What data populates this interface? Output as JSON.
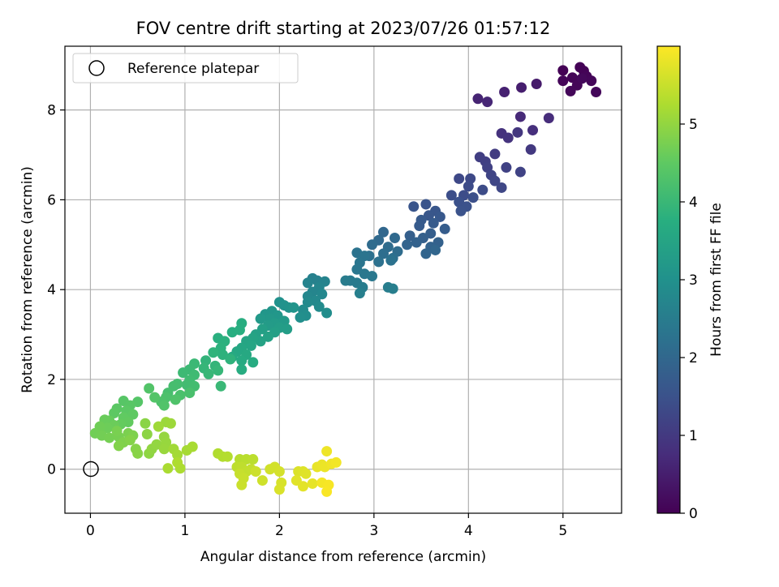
{
  "chart_data": {
    "type": "scatter",
    "title": "FOV centre drift starting at 2023/07/26 01:57:12",
    "xlabel": "Angular distance from reference (arcmin)",
    "ylabel": "Rotation from reference (arcmin)",
    "xlim": [
      -0.27,
      5.62
    ],
    "ylim": [
      -0.98,
      9.42
    ],
    "xticks": [
      0,
      1,
      2,
      3,
      4,
      5
    ],
    "yticks": [
      0,
      2,
      4,
      6,
      8
    ],
    "grid": true,
    "legend_position": "top-left",
    "reference": {
      "label": "Reference platepar",
      "x": 0,
      "y": 0
    },
    "colorbar": {
      "label": "Hours from first FF file",
      "colormap": "viridis",
      "range": [
        0,
        6.0
      ],
      "ticks": [
        0,
        1,
        2,
        3,
        4,
        5
      ]
    },
    "series": [
      {
        "colored_by": "hours",
        "points": [
          [
            5.0,
            8.88,
            0.02
          ],
          [
            5.18,
            8.95,
            0.03
          ],
          [
            5.22,
            8.87,
            0.04
          ],
          [
            5.1,
            8.72,
            0.05
          ],
          [
            5.25,
            8.75,
            0.06
          ],
          [
            5.0,
            8.65,
            0.07
          ],
          [
            5.15,
            8.55,
            0.08
          ],
          [
            5.3,
            8.65,
            0.09
          ],
          [
            5.08,
            8.42,
            0.1
          ],
          [
            5.35,
            8.4,
            0.11
          ],
          [
            5.2,
            8.7,
            0.12
          ],
          [
            4.72,
            8.58,
            0.45
          ],
          [
            4.56,
            8.5,
            0.5
          ],
          [
            4.38,
            8.4,
            0.55
          ],
          [
            4.1,
            8.25,
            0.6
          ],
          [
            4.2,
            8.18,
            0.65
          ],
          [
            4.55,
            7.85,
            0.7
          ],
          [
            4.85,
            7.82,
            0.75
          ],
          [
            4.68,
            7.55,
            0.8
          ],
          [
            4.35,
            7.48,
            0.85
          ],
          [
            4.42,
            7.38,
            0.9
          ],
          [
            4.52,
            7.5,
            0.95
          ],
          [
            4.66,
            7.12,
            1.0
          ],
          [
            4.28,
            7.02,
            1.05
          ],
          [
            4.12,
            6.95,
            1.1
          ],
          [
            4.18,
            6.85,
            1.12
          ],
          [
            4.2,
            6.72,
            1.15
          ],
          [
            4.4,
            6.72,
            1.18
          ],
          [
            4.55,
            6.62,
            1.2
          ],
          [
            4.24,
            6.55,
            1.22
          ],
          [
            4.28,
            6.42,
            1.25
          ],
          [
            4.35,
            6.27,
            1.28
          ],
          [
            3.9,
            6.47,
            1.3
          ],
          [
            4.02,
            6.47,
            1.32
          ],
          [
            4.0,
            6.3,
            1.35
          ],
          [
            4.15,
            6.22,
            1.38
          ],
          [
            3.95,
            6.1,
            1.4
          ],
          [
            3.82,
            6.1,
            1.42
          ],
          [
            4.05,
            6.05,
            1.45
          ],
          [
            3.9,
            5.95,
            1.48
          ],
          [
            3.98,
            5.85,
            1.5
          ],
          [
            3.92,
            5.75,
            1.52
          ],
          [
            3.55,
            5.9,
            1.55
          ],
          [
            3.42,
            5.85,
            1.58
          ],
          [
            3.65,
            5.75,
            1.6
          ],
          [
            3.58,
            5.65,
            1.62
          ],
          [
            3.7,
            5.62,
            1.65
          ],
          [
            3.5,
            5.55,
            1.68
          ],
          [
            3.63,
            5.48,
            1.7
          ],
          [
            3.48,
            5.42,
            1.72
          ],
          [
            3.75,
            5.35,
            1.75
          ],
          [
            3.6,
            5.25,
            1.78
          ],
          [
            3.38,
            5.2,
            1.8
          ],
          [
            3.52,
            5.15,
            1.82
          ],
          [
            3.68,
            5.05,
            1.85
          ],
          [
            3.45,
            5.05,
            1.88
          ],
          [
            3.6,
            4.95,
            1.9
          ],
          [
            3.35,
            5.0,
            1.92
          ],
          [
            3.55,
            4.8,
            1.95
          ],
          [
            3.65,
            4.88,
            1.97
          ],
          [
            3.1,
            5.28,
            2.0
          ],
          [
            3.22,
            5.15,
            2.03
          ],
          [
            3.05,
            5.1,
            2.05
          ],
          [
            2.98,
            5.0,
            2.08
          ],
          [
            3.15,
            4.95,
            2.1
          ],
          [
            3.25,
            4.85,
            2.12
          ],
          [
            3.1,
            4.8,
            2.15
          ],
          [
            3.2,
            4.7,
            2.18
          ],
          [
            2.95,
            4.75,
            2.2
          ],
          [
            3.05,
            4.62,
            2.22
          ],
          [
            3.18,
            4.65,
            2.25
          ],
          [
            2.82,
            4.82,
            2.28
          ],
          [
            2.9,
            4.75,
            2.3
          ],
          [
            2.85,
            4.6,
            2.32
          ],
          [
            2.82,
            4.45,
            2.35
          ],
          [
            2.9,
            4.35,
            2.38
          ],
          [
            2.98,
            4.3,
            2.4
          ],
          [
            2.75,
            4.2,
            2.42
          ],
          [
            2.82,
            4.15,
            2.45
          ],
          [
            2.7,
            4.2,
            2.48
          ],
          [
            2.88,
            4.05,
            2.5
          ],
          [
            3.15,
            4.05,
            2.52
          ],
          [
            3.2,
            4.02,
            2.55
          ],
          [
            2.85,
            3.92,
            2.57
          ],
          [
            2.35,
            4.25,
            2.6
          ],
          [
            2.4,
            4.2,
            2.62
          ],
          [
            2.3,
            4.15,
            2.65
          ],
          [
            2.48,
            4.18,
            2.67
          ],
          [
            2.42,
            4.05,
            2.7
          ],
          [
            2.35,
            3.95,
            2.72
          ],
          [
            2.3,
            3.85,
            2.75
          ],
          [
            2.45,
            3.9,
            2.77
          ],
          [
            2.38,
            3.75,
            2.8
          ],
          [
            2.3,
            3.72,
            2.82
          ],
          [
            2.42,
            3.62,
            2.85
          ],
          [
            2.25,
            3.55,
            2.87
          ],
          [
            2.5,
            3.48,
            2.9
          ],
          [
            2.28,
            3.42,
            2.92
          ],
          [
            2.22,
            3.38,
            2.95
          ],
          [
            2.0,
            3.72,
            3.0
          ],
          [
            2.05,
            3.65,
            3.02
          ],
          [
            2.1,
            3.6,
            3.05
          ],
          [
            2.15,
            3.6,
            3.07
          ],
          [
            1.92,
            3.52,
            3.1
          ],
          [
            1.85,
            3.45,
            3.12
          ],
          [
            1.98,
            3.42,
            3.15
          ],
          [
            1.9,
            3.35,
            3.17
          ],
          [
            1.8,
            3.35,
            3.2
          ],
          [
            2.05,
            3.3,
            3.22
          ],
          [
            1.95,
            3.25,
            3.25
          ],
          [
            1.88,
            3.2,
            3.27
          ],
          [
            2.0,
            3.15,
            3.3
          ],
          [
            2.08,
            3.12,
            3.32
          ],
          [
            1.82,
            3.12,
            3.35
          ],
          [
            1.95,
            3.05,
            3.37
          ],
          [
            1.75,
            3.0,
            3.4
          ],
          [
            1.88,
            2.95,
            3.42
          ],
          [
            1.8,
            2.85,
            3.45
          ],
          [
            1.72,
            2.92,
            3.47
          ],
          [
            1.65,
            2.85,
            3.5
          ],
          [
            1.7,
            2.75,
            3.52
          ],
          [
            1.6,
            2.7,
            3.55
          ],
          [
            1.55,
            2.62,
            3.57
          ],
          [
            1.65,
            2.55,
            3.6
          ],
          [
            1.5,
            2.5,
            3.62
          ],
          [
            1.6,
            2.42,
            3.65
          ],
          [
            1.72,
            2.38,
            3.67
          ],
          [
            1.6,
            2.22,
            3.7
          ],
          [
            1.6,
            3.25,
            3.72
          ],
          [
            1.5,
            3.05,
            3.74
          ],
          [
            1.58,
            3.1,
            3.76
          ],
          [
            1.35,
            2.92,
            3.78
          ],
          [
            1.42,
            2.85,
            3.8
          ],
          [
            1.38,
            2.7,
            3.82
          ],
          [
            1.4,
            2.55,
            3.84
          ],
          [
            1.48,
            2.45,
            3.86
          ],
          [
            1.3,
            2.6,
            3.88
          ],
          [
            1.22,
            2.42,
            3.9
          ],
          [
            1.32,
            2.3,
            3.92
          ],
          [
            1.2,
            2.25,
            3.94
          ],
          [
            1.35,
            2.2,
            3.96
          ],
          [
            1.25,
            2.12,
            3.98
          ],
          [
            1.38,
            1.85,
            4.0
          ],
          [
            1.1,
            2.35,
            4.02
          ],
          [
            1.05,
            2.22,
            4.04
          ],
          [
            0.98,
            2.15,
            4.06
          ],
          [
            1.1,
            2.1,
            4.08
          ],
          [
            1.05,
            1.98,
            4.1
          ],
          [
            1.02,
            1.88,
            4.12
          ],
          [
            1.1,
            1.85,
            4.14
          ],
          [
            0.92,
            1.9,
            4.16
          ],
          [
            0.88,
            1.85,
            4.18
          ],
          [
            0.82,
            1.7,
            4.2
          ],
          [
            1.05,
            1.7,
            4.22
          ],
          [
            0.95,
            1.65,
            4.24
          ],
          [
            0.8,
            1.6,
            4.26
          ],
          [
            0.75,
            1.5,
            4.28
          ],
          [
            0.9,
            1.55,
            4.3
          ],
          [
            0.78,
            1.42,
            4.32
          ],
          [
            0.62,
            1.8,
            4.34
          ],
          [
            0.68,
            1.6,
            4.36
          ],
          [
            0.5,
            1.5,
            4.38
          ],
          [
            0.35,
            1.52,
            4.4
          ],
          [
            0.42,
            1.42,
            4.42
          ],
          [
            0.28,
            1.35,
            4.44
          ],
          [
            0.38,
            1.3,
            4.46
          ],
          [
            0.25,
            1.25,
            4.48
          ],
          [
            0.45,
            1.22,
            4.5
          ],
          [
            0.35,
            1.15,
            4.52
          ],
          [
            0.4,
            1.05,
            4.54
          ],
          [
            0.32,
            1.0,
            4.56
          ],
          [
            0.2,
            1.08,
            4.58
          ],
          [
            0.15,
            1.1,
            4.6
          ],
          [
            0.25,
            0.98,
            4.62
          ],
          [
            0.18,
            0.92,
            4.64
          ],
          [
            0.1,
            0.95,
            4.66
          ],
          [
            0.05,
            0.8,
            4.68
          ],
          [
            0.12,
            0.75,
            4.7
          ],
          [
            0.2,
            0.7,
            4.72
          ],
          [
            0.3,
            0.72,
            4.74
          ],
          [
            0.28,
            0.85,
            4.76
          ],
          [
            0.4,
            0.8,
            4.78
          ],
          [
            0.45,
            0.75,
            4.8
          ],
          [
            0.35,
            0.6,
            4.82
          ],
          [
            0.3,
            0.52,
            4.84
          ],
          [
            0.42,
            0.65,
            4.86
          ],
          [
            0.48,
            0.45,
            4.88
          ],
          [
            0.5,
            0.35,
            4.9
          ],
          [
            0.58,
            1.02,
            4.92
          ],
          [
            0.6,
            0.78,
            4.94
          ],
          [
            0.62,
            0.35,
            4.96
          ],
          [
            0.65,
            0.45,
            4.98
          ],
          [
            0.7,
            0.55,
            5.0
          ],
          [
            0.78,
            0.72,
            5.02
          ],
          [
            0.8,
            0.6,
            5.04
          ],
          [
            0.78,
            0.45,
            5.06
          ],
          [
            0.8,
            1.05,
            5.08
          ],
          [
            0.85,
            1.02,
            5.1
          ],
          [
            0.72,
            0.95,
            5.12
          ],
          [
            0.88,
            0.45,
            5.14
          ],
          [
            0.92,
            0.32,
            5.16
          ],
          [
            1.02,
            0.42,
            5.18
          ],
          [
            1.08,
            0.5,
            5.2
          ],
          [
            0.82,
            0.02,
            5.22
          ],
          [
            0.95,
            0.02,
            5.24
          ],
          [
            0.92,
            0.15,
            5.26
          ],
          [
            1.35,
            0.35,
            5.28
          ],
          [
            1.4,
            0.28,
            5.3
          ],
          [
            1.45,
            0.28,
            5.32
          ],
          [
            1.58,
            0.22,
            5.34
          ],
          [
            1.65,
            0.22,
            5.36
          ],
          [
            1.72,
            0.22,
            5.38
          ],
          [
            1.55,
            0.05,
            5.4
          ],
          [
            1.6,
            0.05,
            5.42
          ],
          [
            1.65,
            -0.05,
            5.44
          ],
          [
            1.7,
            0.0,
            5.46
          ],
          [
            1.58,
            -0.1,
            5.48
          ],
          [
            1.62,
            -0.2,
            5.5
          ],
          [
            1.6,
            -0.35,
            5.52
          ],
          [
            1.75,
            -0.05,
            5.54
          ],
          [
            1.82,
            -0.25,
            5.56
          ],
          [
            1.9,
            0.0,
            5.58
          ],
          [
            1.95,
            0.05,
            5.6
          ],
          [
            2.0,
            -0.05,
            5.62
          ],
          [
            2.02,
            -0.3,
            5.64
          ],
          [
            2.0,
            -0.45,
            5.66
          ],
          [
            2.2,
            -0.05,
            5.68
          ],
          [
            2.25,
            -0.05,
            5.7
          ],
          [
            2.28,
            -0.1,
            5.72
          ],
          [
            2.18,
            -0.25,
            5.74
          ],
          [
            2.25,
            -0.38,
            5.76
          ],
          [
            2.35,
            -0.32,
            5.78
          ],
          [
            2.4,
            0.05,
            5.8
          ],
          [
            2.45,
            0.1,
            5.82
          ],
          [
            2.48,
            0.05,
            5.84
          ],
          [
            2.5,
            0.4,
            5.86
          ],
          [
            2.55,
            0.12,
            5.88
          ],
          [
            2.6,
            0.15,
            5.9
          ],
          [
            2.45,
            -0.3,
            5.92
          ],
          [
            2.52,
            -0.35,
            5.94
          ],
          [
            2.5,
            -0.5,
            5.96
          ]
        ]
      }
    ]
  }
}
